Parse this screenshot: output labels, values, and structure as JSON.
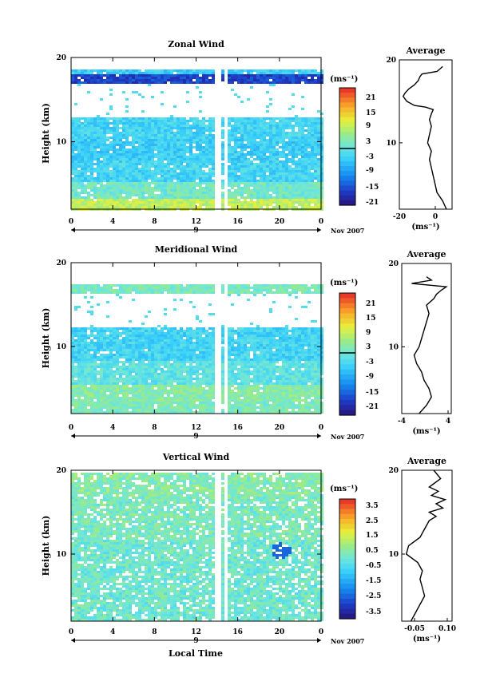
{
  "figure": {
    "panels": [
      {
        "id": "zonal",
        "title": "Zonal Wind",
        "ylabel": "Height (km)",
        "yticks": [
          "20",
          "10"
        ],
        "colorbar_unit": "(ms⁻¹)",
        "colorbar_ticks": [
          "21",
          "15",
          "9",
          "3",
          "-3",
          "-9",
          "-15",
          "-21"
        ],
        "avg_title": "Average",
        "avg_xticks": [
          "-20",
          "0"
        ],
        "avg_yticks": [
          "20",
          "10"
        ],
        "avg_unit": "(ms⁻¹)"
      },
      {
        "id": "meridional",
        "title": "Meridional Wind",
        "ylabel": "Height (km)",
        "yticks": [
          "20",
          "10"
        ],
        "colorbar_unit": "(ms⁻¹)",
        "colorbar_ticks": [
          "21",
          "15",
          "9",
          "3",
          "-3",
          "-9",
          "-15",
          "-21"
        ],
        "avg_title": "Average",
        "avg_xticks": [
          "-4",
          "4"
        ],
        "avg_yticks": [
          "20",
          "10"
        ],
        "avg_unit": "(ms⁻¹)"
      },
      {
        "id": "vertical",
        "title": "Vertical Wind",
        "ylabel": "Height (km)",
        "yticks": [
          "20",
          "10"
        ],
        "colorbar_unit": "(ms⁻¹)",
        "colorbar_ticks": [
          "3.5",
          "2.5",
          "1.5",
          "0.5",
          "-0.5",
          "-1.5",
          "-2.5",
          "-3.5"
        ],
        "avg_title": "Average",
        "avg_xticks": [
          "-0.05",
          "0.10"
        ],
        "avg_yticks": [
          "20",
          "10"
        ],
        "avg_unit": "(ms⁻¹)"
      }
    ],
    "xticks": [
      "0",
      "4",
      "8",
      "12",
      "16",
      "20",
      "0"
    ],
    "date_marker": "9",
    "date_label": "Nov 2007",
    "xlabel": "Local Time"
  },
  "chart_data": [
    {
      "type": "heatmap",
      "title": "Zonal Wind",
      "xlabel": "",
      "ylabel": "Height (km)",
      "xlim": [
        0,
        24
      ],
      "ylim": [
        2,
        20
      ],
      "colorbar_range": [
        -24,
        24
      ],
      "colorbar_zero_marker": 0,
      "bands": [
        {
          "z0": 2.0,
          "z1": 3.5,
          "value": 8
        },
        {
          "z0": 3.5,
          "z1": 5.5,
          "value": 1
        },
        {
          "z0": 5.5,
          "z1": 8.0,
          "value": -4
        },
        {
          "z0": 8.0,
          "z1": 10.5,
          "value": -5
        },
        {
          "z0": 10.5,
          "z1": 13.0,
          "value": -4
        },
        {
          "z0": 13.0,
          "z1": 17.0,
          "value": null
        },
        {
          "z0": 17.0,
          "z1": 18.2,
          "value": -18
        },
        {
          "z0": 18.2,
          "z1": 18.8,
          "value": -5
        }
      ],
      "gaps_hours": [
        [
          13.8,
          14.2
        ],
        [
          14.5,
          14.75
        ]
      ]
    },
    {
      "type": "line",
      "title": "Average",
      "xlabel": "(ms⁻¹)",
      "ylabel": "",
      "xlim": [
        -20,
        8
      ],
      "ylim": [
        2,
        20
      ],
      "x": [
        5,
        3,
        0,
        -1,
        -2,
        -3,
        -4,
        -3,
        -5,
        -4,
        -3,
        -4,
        -3,
        -2,
        -6,
        -12,
        -16,
        -18,
        -17,
        -15,
        -12,
        -10,
        -9,
        -8,
        0,
        1,
        2,
        3
      ],
      "y": [
        2,
        3,
        4,
        5,
        6,
        7,
        8,
        9,
        10,
        11,
        12,
        12.8,
        13.5,
        14,
        14.3,
        14.5,
        15,
        15.6,
        16,
        16.5,
        17,
        17.5,
        18,
        18.3,
        18.6,
        18.8,
        19,
        19.2
      ]
    },
    {
      "type": "heatmap",
      "title": "Meridional Wind",
      "xlabel": "",
      "ylabel": "Height (km)",
      "xlim": [
        0,
        24
      ],
      "ylim": [
        2,
        20
      ],
      "colorbar_range": [
        -24,
        24
      ],
      "colorbar_zero_marker": 0,
      "bands": [
        {
          "z0": 2.0,
          "z1": 3.5,
          "value": 2
        },
        {
          "z0": 3.5,
          "z1": 5.5,
          "value": 3
        },
        {
          "z0": 5.5,
          "z1": 8.5,
          "value": -1
        },
        {
          "z0": 8.5,
          "z1": 12.5,
          "value": -4
        },
        {
          "z0": 12.5,
          "z1": 16.5,
          "value": null
        },
        {
          "z0": 16.5,
          "z1": 17.5,
          "value": 2
        }
      ],
      "gaps_hours": [
        [
          13.8,
          14.2
        ],
        [
          14.5,
          14.75
        ]
      ]
    },
    {
      "type": "line",
      "title": "Average",
      "xlabel": "(ms⁻¹)",
      "ylabel": "",
      "xlim": [
        -5,
        5
      ],
      "ylim": [
        2,
        20
      ],
      "x": [
        -1.5,
        0,
        1,
        0.5,
        -0.5,
        -1,
        -2,
        -2.5,
        -1.5,
        -1,
        -0.5,
        0,
        0.5,
        0,
        1.5,
        2,
        3,
        4,
        -3,
        1,
        0
      ],
      "y": [
        2,
        3,
        4,
        5,
        6,
        7,
        8,
        9,
        10,
        11,
        12,
        13,
        14,
        15,
        15.8,
        16.3,
        16.8,
        17.2,
        17.6,
        18,
        18.4
      ]
    },
    {
      "type": "heatmap",
      "title": "Vertical Wind",
      "xlabel": "Local Time",
      "ylabel": "Height (km)",
      "xlim": [
        0,
        24
      ],
      "ylim": [
        2,
        20
      ],
      "colorbar_range": [
        -4,
        4
      ],
      "bands": [
        {
          "z0": 2.0,
          "z1": 12.0,
          "value": 0.1
        },
        {
          "z0": 12.0,
          "z1": 17.0,
          "value": 0.3
        },
        {
          "z0": 17.0,
          "z1": 20.0,
          "value": 0.5
        }
      ],
      "features": [
        {
          "x_hour": 20,
          "z": 10.5,
          "value": -2.5
        }
      ],
      "gaps_hours": [
        [
          13.8,
          14.2
        ],
        [
          14.5,
          14.75
        ]
      ]
    },
    {
      "type": "line",
      "title": "Average",
      "xlabel": "(ms⁻¹)",
      "ylabel": "",
      "xlim": [
        -0.1,
        0.12
      ],
      "ylim": [
        2,
        20
      ],
      "x": [
        -0.06,
        -0.04,
        -0.02,
        0.0,
        -0.01,
        -0.02,
        -0.01,
        -0.03,
        -0.08,
        -0.07,
        -0.02,
        0.0,
        0.02,
        0.05,
        0.02,
        0.08,
        0.05,
        0.09,
        0.03,
        0.06,
        0.02,
        0.07,
        0.04
      ],
      "y": [
        2,
        3,
        4,
        5,
        6,
        7,
        8,
        9,
        10,
        11,
        12,
        13,
        14,
        14.5,
        15,
        15.5,
        16,
        16.5,
        17,
        17.5,
        18,
        19,
        20
      ]
    }
  ]
}
